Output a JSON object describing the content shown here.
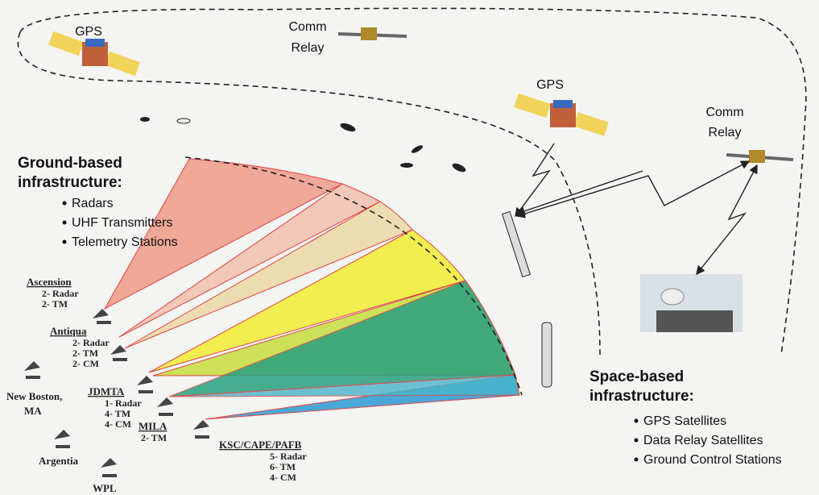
{
  "satellites": [
    {
      "label": [
        "GPS"
      ]
    },
    {
      "label": [
        "Comm",
        "Relay"
      ]
    },
    {
      "label": [
        "GPS"
      ]
    },
    {
      "label": [
        "Comm",
        "Relay"
      ]
    }
  ],
  "ground": {
    "title": [
      "Ground-based",
      "infrastructure:"
    ],
    "items": [
      "Radars",
      "UHF Transmitters",
      "Telemetry Stations"
    ]
  },
  "space": {
    "title": [
      "Space-based",
      "infrastructure:"
    ],
    "items": [
      "GPS Satellites",
      "Data Relay Satellites",
      "Ground Control Stations"
    ]
  },
  "stations": [
    {
      "name": [
        "Ascension"
      ],
      "details": [
        "2- Radar",
        "2- TM"
      ]
    },
    {
      "name": [
        "Antiqua"
      ],
      "details": [
        "2- Radar",
        "2- TM",
        "2- CM"
      ]
    },
    {
      "name": [
        "New Boston,",
        "MA"
      ],
      "details": []
    },
    {
      "name": [
        "JDMTA"
      ],
      "details": [
        "1- Radar",
        "4- TM",
        "4- CM"
      ]
    },
    {
      "name": [
        "MILA"
      ],
      "details": [
        "2- TM"
      ]
    },
    {
      "name": [
        "Argentia"
      ],
      "details": []
    },
    {
      "name": [
        "WPL"
      ],
      "details": []
    },
    {
      "name": [
        "KSC/CAPE/PAFB"
      ],
      "details": [
        "5- Radar",
        "6- TM",
        "4- CM"
      ]
    }
  ]
}
